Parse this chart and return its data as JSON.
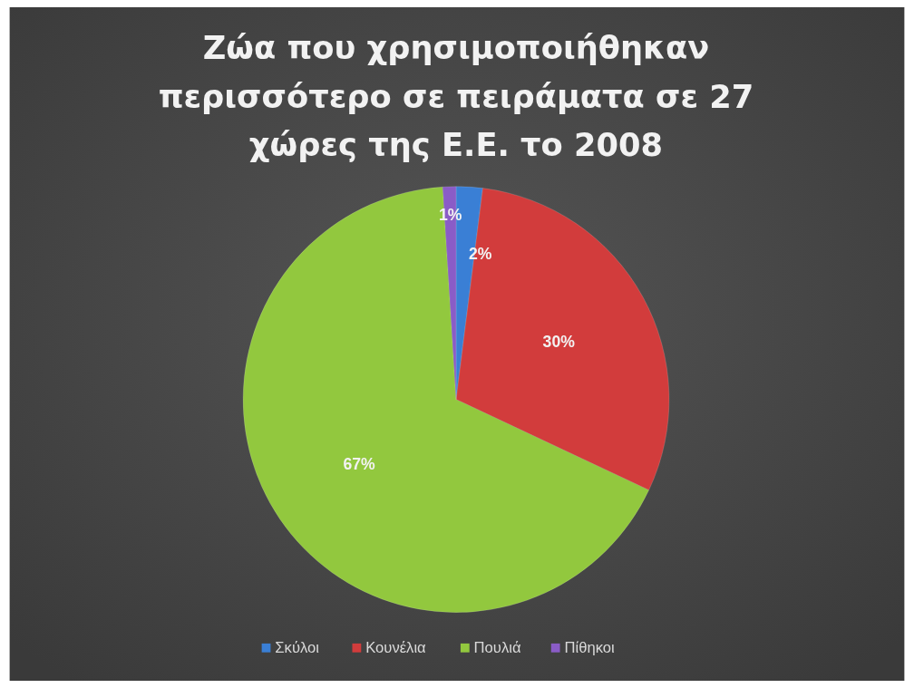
{
  "chart_data": {
    "type": "pie",
    "title": "Ζώα που χρησιμοποιήθηκαν περισσότερο σε πειράματα σε 27 χώρες της Ε.Ε. το 2008",
    "categories": [
      "Σκύλοι",
      "Κουνέλια",
      "Πουλιά",
      "Πίθηκοι"
    ],
    "values": [
      2,
      30,
      67,
      1
    ],
    "colors": [
      "#3a7fd5",
      "#d23c3c",
      "#92c83e",
      "#8a5cc7"
    ],
    "value_labels": [
      "2%",
      "30%",
      "67%",
      "1%"
    ],
    "legend": "bottom"
  }
}
